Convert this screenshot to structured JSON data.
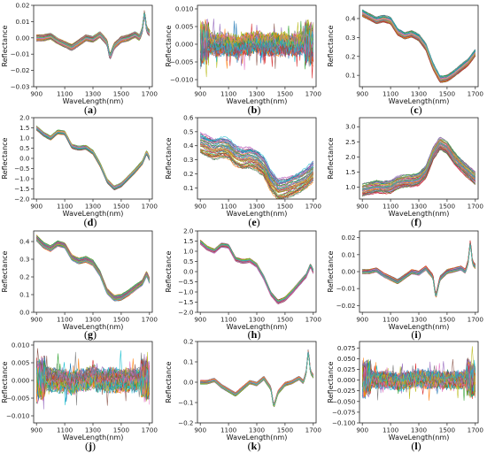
{
  "palette": [
    "#1f77b4",
    "#ff7f0e",
    "#2ca02c",
    "#d62728",
    "#9467bd",
    "#8c564b",
    "#e377c2",
    "#7f7f7f",
    "#bcbd22",
    "#17becf"
  ],
  "chart_data": [
    {
      "panel": "(a)",
      "letter": "a",
      "type": "line",
      "xlabel": "WaveLength(nm)",
      "ylabel": "Reflectance",
      "xlim": [
        880,
        1720
      ],
      "ylim": [
        -0.03,
        0.02
      ],
      "xticks": [
        900,
        1100,
        1300,
        1500,
        1700
      ],
      "yticks": [
        -0.03,
        -0.02,
        -0.01,
        0.0,
        0.01,
        0.02
      ],
      "ytick_labels": [
        "−0.03",
        "−0.02",
        "−0.01",
        "0.00",
        "0.01",
        "0.02"
      ],
      "x": [
        900,
        950,
        1000,
        1050,
        1100,
        1150,
        1200,
        1250,
        1300,
        1350,
        1400,
        1420,
        1450,
        1500,
        1550,
        1600,
        1630,
        1650,
        1665,
        1680,
        1700
      ],
      "y": [
        0.0,
        0.0,
        0.001,
        -0.002,
        -0.004,
        -0.006,
        -0.003,
        0.0,
        -0.001,
        0.002,
        -0.003,
        -0.012,
        -0.005,
        -0.001,
        0.0,
        0.002,
        0.0,
        0.005,
        0.016,
        0.005,
        0.003
      ],
      "series_count": 60,
      "spread": 0.002
    },
    {
      "panel": "(b)",
      "letter": "b",
      "type": "line",
      "xlabel": "WaveLength(nm)",
      "ylabel": "Reflectance",
      "xlim": [
        880,
        1720
      ],
      "ylim": [
        -0.012,
        0.011
      ],
      "xticks": [
        900,
        1100,
        1300,
        1500,
        1700
      ],
      "yticks": [
        -0.01,
        -0.005,
        0.0,
        0.005,
        0.01
      ],
      "ytick_labels": [
        "−0.010",
        "−0.005",
        "0.000",
        "0.005",
        "0.010"
      ],
      "x": [
        900,
        950,
        1000,
        1050,
        1100,
        1150,
        1200,
        1250,
        1300,
        1350,
        1400,
        1450,
        1500,
        1550,
        1600,
        1650,
        1680,
        1700
      ],
      "y": [
        0.0,
        0.001,
        0.0,
        0.0,
        0.0,
        -0.001,
        0.0,
        0.0,
        0.001,
        0.0,
        0.0,
        0.0,
        0.0,
        0.0,
        0.0,
        0.001,
        0.0,
        0.0
      ],
      "series_count": 60,
      "spread": 0.002,
      "noise": 0.002
    },
    {
      "panel": "(c)",
      "letter": "c",
      "type": "line",
      "xlabel": "WaveLength(nm)",
      "ylabel": "Reflectance",
      "xlim": [
        880,
        1720
      ],
      "ylim": [
        0.04,
        0.47
      ],
      "xticks": [
        900,
        1100,
        1300,
        1500,
        1700
      ],
      "yticks": [
        0.1,
        0.2,
        0.3,
        0.4
      ],
      "ytick_labels": [
        "0.1",
        "0.2",
        "0.3",
        "0.4"
      ],
      "x": [
        900,
        950,
        1000,
        1050,
        1100,
        1150,
        1200,
        1250,
        1300,
        1350,
        1400,
        1450,
        1500,
        1550,
        1600,
        1650,
        1700
      ],
      "y": [
        0.43,
        0.41,
        0.39,
        0.4,
        0.39,
        0.33,
        0.31,
        0.32,
        0.3,
        0.25,
        0.15,
        0.08,
        0.085,
        0.11,
        0.14,
        0.17,
        0.22
      ],
      "series_count": 50,
      "spread": 0.02
    },
    {
      "panel": "(d)",
      "letter": "d",
      "type": "line",
      "xlabel": "WaveLength(nm)",
      "ylabel": "Reflectance",
      "xlim": [
        880,
        1720
      ],
      "ylim": [
        -2.0,
        2.0
      ],
      "xticks": [
        900,
        1100,
        1300,
        1500,
        1700
      ],
      "yticks": [
        -2.0,
        -1.5,
        -1.0,
        -0.5,
        0.0,
        0.5,
        1.0,
        1.5,
        2.0
      ],
      "ytick_labels": [
        "−2.0",
        "−1.5",
        "−1.0",
        "−0.5",
        "0.0",
        "0.5",
        "1.0",
        "1.5",
        "2.0"
      ],
      "x": [
        900,
        950,
        1000,
        1050,
        1100,
        1150,
        1200,
        1250,
        1300,
        1350,
        1400,
        1450,
        1500,
        1550,
        1600,
        1650,
        1680,
        1700
      ],
      "y": [
        1.5,
        1.2,
        1.0,
        1.3,
        1.25,
        0.6,
        0.5,
        0.55,
        0.3,
        -0.3,
        -1.1,
        -1.45,
        -1.3,
        -0.95,
        -0.6,
        -0.2,
        0.3,
        0.0
      ],
      "series_count": 50,
      "spread": 0.12
    },
    {
      "panel": "(e)",
      "letter": "e",
      "type": "line",
      "xlabel": "WaveLength(nm)",
      "ylabel": "Reflectance",
      "xlim": [
        880,
        1720
      ],
      "ylim": [
        0.02,
        0.6
      ],
      "xticks": [
        900,
        1100,
        1300,
        1500,
        1700
      ],
      "yticks": [
        0.1,
        0.2,
        0.3,
        0.4,
        0.5,
        0.6
      ],
      "ytick_labels": [
        "0.1",
        "0.2",
        "0.3",
        "0.4",
        "0.5",
        "0.6"
      ],
      "x": [
        900,
        950,
        1000,
        1050,
        1100,
        1150,
        1200,
        1250,
        1300,
        1350,
        1400,
        1450,
        1500,
        1550,
        1600,
        1650,
        1700
      ],
      "y": [
        0.42,
        0.4,
        0.38,
        0.39,
        0.38,
        0.33,
        0.31,
        0.32,
        0.3,
        0.25,
        0.15,
        0.09,
        0.1,
        0.12,
        0.14,
        0.17,
        0.22
      ],
      "series_count": 50,
      "spread": 0.08
    },
    {
      "panel": "(f)",
      "letter": "f",
      "type": "line",
      "xlabel": "WaveLength(nm)",
      "ylabel": "Reflectance",
      "xlim": [
        880,
        1720
      ],
      "ylim": [
        0.6,
        3.3
      ],
      "xticks": [
        900,
        1100,
        1300,
        1500,
        1700
      ],
      "yticks": [
        1.0,
        1.5,
        2.0,
        2.5,
        3.0
      ],
      "ytick_labels": [
        "1.0",
        "1.5",
        "2.0",
        "2.5",
        "3.0"
      ],
      "x": [
        900,
        950,
        1000,
        1050,
        1100,
        1150,
        1200,
        1250,
        1300,
        1350,
        1400,
        1450,
        1500,
        1550,
        1600,
        1650,
        1700
      ],
      "y": [
        0.9,
        0.95,
        1.0,
        0.98,
        1.0,
        1.15,
        1.2,
        1.2,
        1.25,
        1.5,
        2.1,
        2.45,
        2.3,
        1.95,
        1.7,
        1.5,
        1.3
      ],
      "series_count": 50,
      "spread": 0.22
    },
    {
      "panel": "(g)",
      "letter": "g",
      "type": "line",
      "xlabel": "WaveLength(nm)",
      "ylabel": "Reflectance",
      "xlim": [
        880,
        1720
      ],
      "ylim": [
        0.0,
        0.46
      ],
      "xticks": [
        900,
        1100,
        1300,
        1500,
        1700
      ],
      "yticks": [
        0.0,
        0.1,
        0.2,
        0.3,
        0.4
      ],
      "ytick_labels": [
        "0.0",
        "0.1",
        "0.2",
        "0.3",
        "0.4"
      ],
      "x": [
        900,
        950,
        1000,
        1050,
        1100,
        1150,
        1200,
        1250,
        1300,
        1350,
        1400,
        1450,
        1500,
        1550,
        1600,
        1650,
        1680,
        1700
      ],
      "y": [
        0.42,
        0.38,
        0.36,
        0.39,
        0.38,
        0.31,
        0.29,
        0.3,
        0.28,
        0.22,
        0.12,
        0.08,
        0.085,
        0.11,
        0.14,
        0.17,
        0.22,
        0.18
      ],
      "series_count": 50,
      "spread": 0.018
    },
    {
      "panel": "(h)",
      "letter": "h",
      "type": "line",
      "xlabel": "WaveLength(nm)",
      "ylabel": "Reflectance",
      "xlim": [
        880,
        1720
      ],
      "ylim": [
        -2.0,
        2.0
      ],
      "xticks": [
        900,
        1100,
        1300,
        1500,
        1700
      ],
      "yticks": [
        -2.0,
        -1.5,
        -1.0,
        -0.5,
        0.0,
        0.5,
        1.0,
        1.5,
        2.0
      ],
      "ytick_labels": [
        "−2.0",
        "−1.5",
        "−1.0",
        "−0.5",
        "0.0",
        "0.5",
        "1.0",
        "1.5",
        "2.0"
      ],
      "x": [
        900,
        950,
        1000,
        1050,
        1100,
        1150,
        1200,
        1250,
        1300,
        1350,
        1400,
        1450,
        1500,
        1550,
        1600,
        1650,
        1680,
        1700
      ],
      "y": [
        1.45,
        1.15,
        1.0,
        1.3,
        1.25,
        0.6,
        0.5,
        0.55,
        0.3,
        -0.3,
        -1.1,
        -1.5,
        -1.35,
        -1.0,
        -0.6,
        -0.2,
        0.3,
        0.0
      ],
      "series_count": 50,
      "spread": 0.12
    },
    {
      "panel": "(i)",
      "letter": "i",
      "type": "line",
      "xlabel": "WaveLength(nm)",
      "ylabel": "Reflectance",
      "xlim": [
        880,
        1720
      ],
      "ylim": [
        -0.024,
        0.024
      ],
      "xticks": [
        900,
        1100,
        1300,
        1500,
        1700
      ],
      "yticks": [
        -0.02,
        -0.01,
        0.0,
        0.01,
        0.02
      ],
      "ytick_labels": [
        "−0.02",
        "−0.01",
        "0.00",
        "0.01",
        "0.02"
      ],
      "x": [
        900,
        950,
        1000,
        1050,
        1100,
        1150,
        1200,
        1250,
        1300,
        1350,
        1400,
        1420,
        1450,
        1500,
        1550,
        1600,
        1630,
        1650,
        1665,
        1680,
        1700
      ],
      "y": [
        0.0,
        0.0,
        0.001,
        -0.002,
        -0.004,
        -0.006,
        -0.003,
        0.0,
        -0.001,
        0.002,
        -0.003,
        -0.015,
        -0.004,
        0.0,
        0.001,
        0.002,
        0.0,
        0.006,
        0.018,
        0.005,
        0.003
      ],
      "series_count": 50,
      "spread": 0.0015
    },
    {
      "panel": "(j)",
      "letter": "j",
      "type": "line",
      "xlabel": "WaveLength(nm)",
      "ylabel": "Reflectance",
      "xlim": [
        880,
        1720
      ],
      "ylim": [
        -0.012,
        0.011
      ],
      "xticks": [
        900,
        1100,
        1300,
        1500,
        1700
      ],
      "yticks": [
        -0.01,
        -0.005,
        0.0,
        0.005,
        0.01
      ],
      "ytick_labels": [
        "−0.010",
        "−0.005",
        "0.000",
        "0.005",
        "0.010"
      ],
      "x": [
        900,
        950,
        1000,
        1050,
        1100,
        1150,
        1200,
        1250,
        1300,
        1350,
        1400,
        1450,
        1500,
        1550,
        1600,
        1650,
        1680,
        1700
      ],
      "y": [
        0.0,
        0.001,
        0.0,
        0.0,
        0.0,
        -0.001,
        0.0,
        0.0,
        0.001,
        0.0,
        0.0,
        0.0,
        0.0,
        0.0,
        0.0,
        0.001,
        0.0,
        0.0
      ],
      "series_count": 60,
      "spread": 0.002,
      "noise": 0.002
    },
    {
      "panel": "(k)",
      "letter": "k",
      "type": "line",
      "xlabel": "WaveLength(nm)",
      "ylabel": "Reflectance",
      "xlim": [
        880,
        1720
      ],
      "ylim": [
        -0.2,
        0.2
      ],
      "xticks": [
        900,
        1100,
        1300,
        1500,
        1700
      ],
      "yticks": [
        -0.2,
        -0.1,
        0.0,
        0.1,
        0.2
      ],
      "ytick_labels": [
        "−0.2",
        "−0.1",
        "0.0",
        "0.1",
        "0.2"
      ],
      "x": [
        900,
        950,
        1000,
        1050,
        1100,
        1150,
        1200,
        1250,
        1300,
        1350,
        1400,
        1420,
        1450,
        1500,
        1550,
        1600,
        1630,
        1650,
        1665,
        1680,
        1700
      ],
      "y": [
        0.0,
        0.0,
        0.01,
        -0.02,
        -0.04,
        -0.06,
        -0.03,
        0.0,
        -0.01,
        0.02,
        -0.03,
        -0.12,
        -0.05,
        -0.01,
        0.0,
        0.02,
        0.0,
        0.05,
        0.16,
        0.05,
        0.03
      ],
      "series_count": 50,
      "spread": 0.01
    },
    {
      "panel": "(l)",
      "letter": "l",
      "type": "line",
      "xlabel": "WaveLength(nm)",
      "ylabel": "Reflectance",
      "xlim": [
        880,
        1720
      ],
      "ylim": [
        -0.1,
        0.09
      ],
      "xticks": [
        900,
        1100,
        1300,
        1500,
        1700
      ],
      "yticks": [
        -0.1,
        -0.075,
        -0.05,
        -0.025,
        0.0,
        0.025,
        0.05,
        0.075
      ],
      "ytick_labels": [
        "−0.100",
        "−0.075",
        "−0.050",
        "−0.025",
        "0.000",
        "0.025",
        "0.050",
        "0.075"
      ],
      "x": [
        900,
        950,
        1000,
        1050,
        1100,
        1150,
        1200,
        1250,
        1300,
        1350,
        1400,
        1450,
        1500,
        1550,
        1600,
        1650,
        1680,
        1700
      ],
      "y": [
        0.0,
        0.005,
        0.0,
        0.0,
        0.0,
        -0.005,
        0.0,
        0.0,
        0.005,
        0.0,
        0.0,
        0.0,
        0.0,
        0.0,
        0.0,
        0.005,
        0.0,
        0.0
      ],
      "series_count": 60,
      "spread": 0.01,
      "noise": 0.015
    }
  ]
}
